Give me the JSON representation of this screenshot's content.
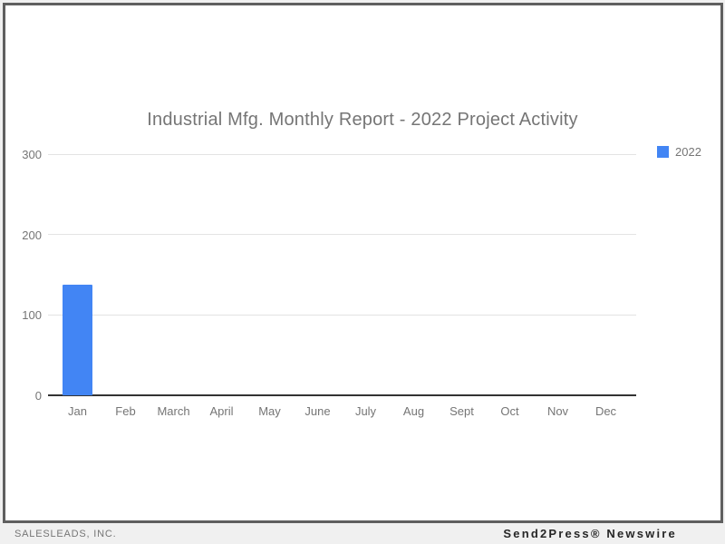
{
  "title": "Industrial Mfg. Monthly Report - 2022 Project Activity",
  "legend": {
    "label": "2022",
    "color": "#4285f4",
    "position": "top-right"
  },
  "footer": {
    "left": "SALESLEADS, INC.",
    "right": "Send2Press® Newswire"
  },
  "colors": {
    "bar": "#4285f4",
    "label_text": "#757575",
    "gridline": "#e3e3e3",
    "baseline": "#333333",
    "frame_border": "#5f5f5f",
    "footer_background": "#f0f0f0"
  },
  "chart_data": {
    "type": "bar",
    "title": "Industrial Mfg. Monthly Report - 2022 Project Activity",
    "categories": [
      "Jan",
      "Feb",
      "March",
      "April",
      "May",
      "June",
      "July",
      "Aug",
      "Sept",
      "Oct",
      "Nov",
      "Dec"
    ],
    "series": [
      {
        "name": "2022",
        "color": "#4285f4",
        "values": [
          137,
          0,
          0,
          0,
          0,
          0,
          0,
          0,
          0,
          0,
          0,
          0
        ]
      }
    ],
    "xlabel": "",
    "ylabel": "",
    "ylim": [
      0,
      300
    ],
    "yticks": [
      0,
      100,
      200,
      300
    ],
    "grid": true,
    "legend_position": "top-right"
  }
}
